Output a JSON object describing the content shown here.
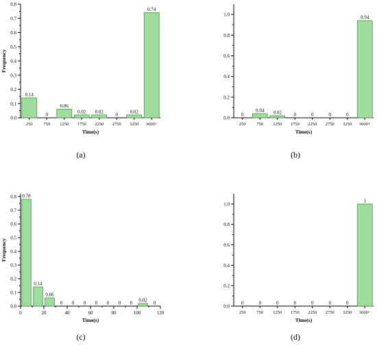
{
  "figure": {
    "bar_color": "#9fdd9c",
    "bar_stroke": "#4c8f4a"
  },
  "chart_data": [
    {
      "type": "bar",
      "panel_label": "(a)",
      "categories": [
        "250",
        "750",
        "1250",
        "1750",
        "2250",
        "2750",
        "3250",
        "3600+"
      ],
      "values": [
        0.14,
        0,
        0.06,
        0.02,
        0.02,
        0,
        0.02,
        0.74
      ],
      "data_labels": [
        "0.14",
        "0",
        "0.06",
        "0.02",
        "0.02",
        "0",
        "0.02",
        "0.74"
      ],
      "xlabel": "Time(s)",
      "ylabel": "Frequency",
      "ylim": [
        0,
        0.8
      ],
      "yticks": [
        "0.0",
        "0.1",
        "0.2",
        "0.3",
        "0.4",
        "0.5",
        "0.6",
        "0.7",
        "0.8"
      ],
      "grid": false
    },
    {
      "type": "bar",
      "panel_label": "(b)",
      "categories": [
        "250",
        "750",
        "1250",
        "1750",
        "2250",
        "2750",
        "3250",
        "3600+"
      ],
      "values": [
        0,
        0.04,
        0.02,
        0,
        0,
        0,
        0,
        0.94
      ],
      "data_labels": [
        "0",
        "0.04",
        "0.02",
        "0",
        "0",
        "0",
        "0",
        "0.94"
      ],
      "xlabel": "Time(s)",
      "ylabel": "",
      "ylim": [
        0,
        1.1
      ],
      "yticks": [
        "0.0",
        "0.2",
        "0.4",
        "0.6",
        "0.8",
        "1.0"
      ],
      "grid": false
    },
    {
      "type": "bar",
      "panel_label": "(c)",
      "x_numeric": true,
      "x": [
        5,
        15,
        25,
        35,
        45,
        55,
        65,
        75,
        85,
        95,
        105,
        115
      ],
      "bin_width": 8,
      "xlim": [
        0,
        120
      ],
      "xticks": [
        "0",
        "20",
        "40",
        "60",
        "80",
        "100",
        "120"
      ],
      "values": [
        0.78,
        0.14,
        0.06,
        0,
        0,
        0,
        0,
        0,
        0,
        0,
        0.02,
        0
      ],
      "data_labels": [
        "0.78",
        "0.14",
        "0.06",
        "0",
        "0",
        "0",
        "0",
        "0",
        "0",
        "0",
        "0.02",
        "0"
      ],
      "xlabel": "Time(s)",
      "ylabel": "Frequency",
      "ylim": [
        0,
        0.82
      ],
      "yticks": [
        "0.0",
        "0.1",
        "0.2",
        "0.3",
        "0.4",
        "0.5",
        "0.6",
        "0.7",
        "0.8"
      ],
      "grid": false
    },
    {
      "type": "bar",
      "panel_label": "(d)",
      "categories": [
        "250",
        "750",
        "1250",
        "1750",
        "2250",
        "2750",
        "3250",
        "3600+"
      ],
      "values": [
        0,
        0,
        0,
        0,
        0,
        0,
        0,
        1
      ],
      "data_labels": [
        "0",
        "0",
        "0",
        "0",
        "0",
        "0",
        "0",
        "1"
      ],
      "xlabel": "Time(s)",
      "ylabel": "",
      "ylim": [
        0,
        1.1
      ],
      "yticks": [
        "0.0",
        "0.2",
        "0.4",
        "0.6",
        "0.8",
        "1.0"
      ],
      "grid": false
    }
  ]
}
